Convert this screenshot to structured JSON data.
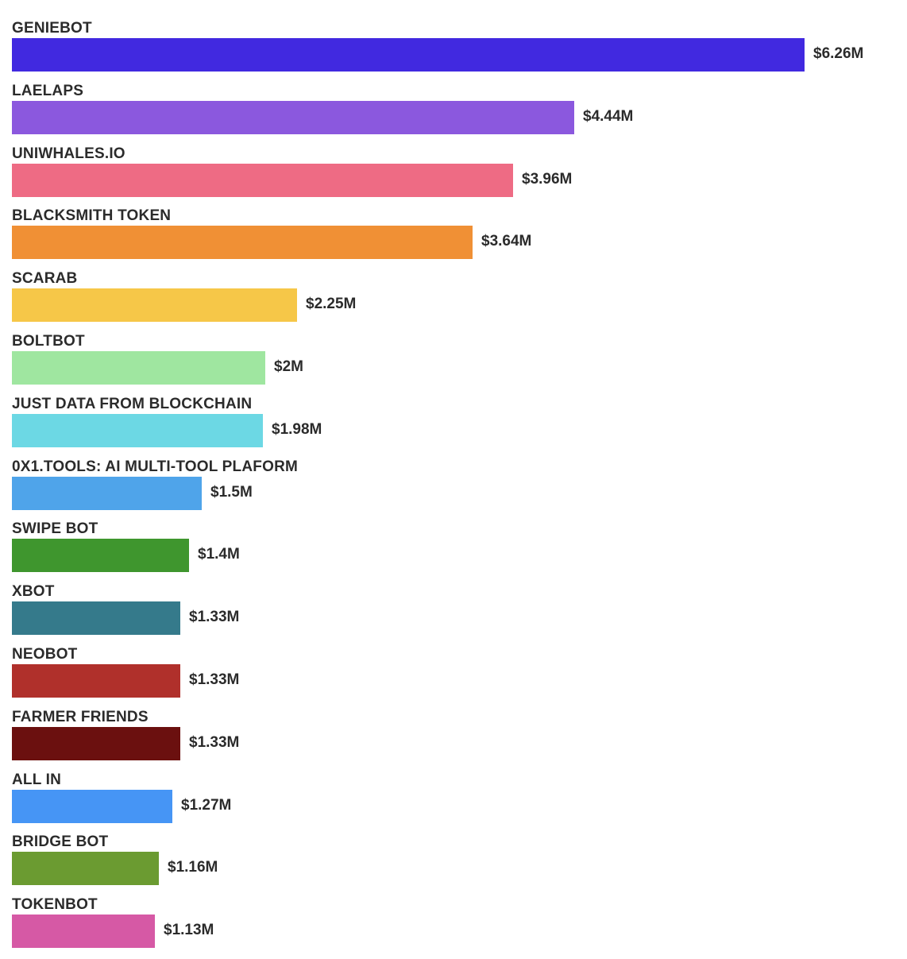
{
  "chart_data": {
    "type": "bar",
    "orientation": "horizontal",
    "title": "",
    "xlabel": "",
    "ylabel": "",
    "xlim": [
      0,
      6.26
    ],
    "grid": false,
    "unit": "$M",
    "categories": [
      "GENIEBOT",
      "LAELAPS",
      "UNIWHALES.IO",
      "BLACKSMITH TOKEN",
      "SCARAB",
      "BOLTBOT",
      "JUST DATA FROM BLOCKCHAIN",
      "0X1.TOOLS: AI MULTI-TOOL PLAFORM",
      "SWIPE BOT",
      "XBOT",
      "NEOBOT",
      "FARMER FRIENDS",
      "ALL IN",
      "BRIDGE BOT",
      "TOKENBOT"
    ],
    "values": [
      6.26,
      4.44,
      3.96,
      3.64,
      2.25,
      2.0,
      1.98,
      1.5,
      1.4,
      1.33,
      1.33,
      1.33,
      1.27,
      1.16,
      1.13
    ],
    "value_labels": [
      "$6.26M",
      "$4.44M",
      "$3.96M",
      "$3.64M",
      "$2.25M",
      "$2M",
      "$1.98M",
      "$1.5M",
      "$1.4M",
      "$1.33M",
      "$1.33M",
      "$1.33M",
      "$1.27M",
      "$1.16M",
      "$1.13M"
    ],
    "colors": [
      "#4129e0",
      "#8b58de",
      "#ee6b84",
      "#f09035",
      "#f6c748",
      "#9fe6a0",
      "#6cd8e4",
      "#4fa4ea",
      "#3f962e",
      "#357a8b",
      "#b0302b",
      "#6b100f",
      "#4695f5",
      "#6b9b31",
      "#d659a5"
    ]
  }
}
